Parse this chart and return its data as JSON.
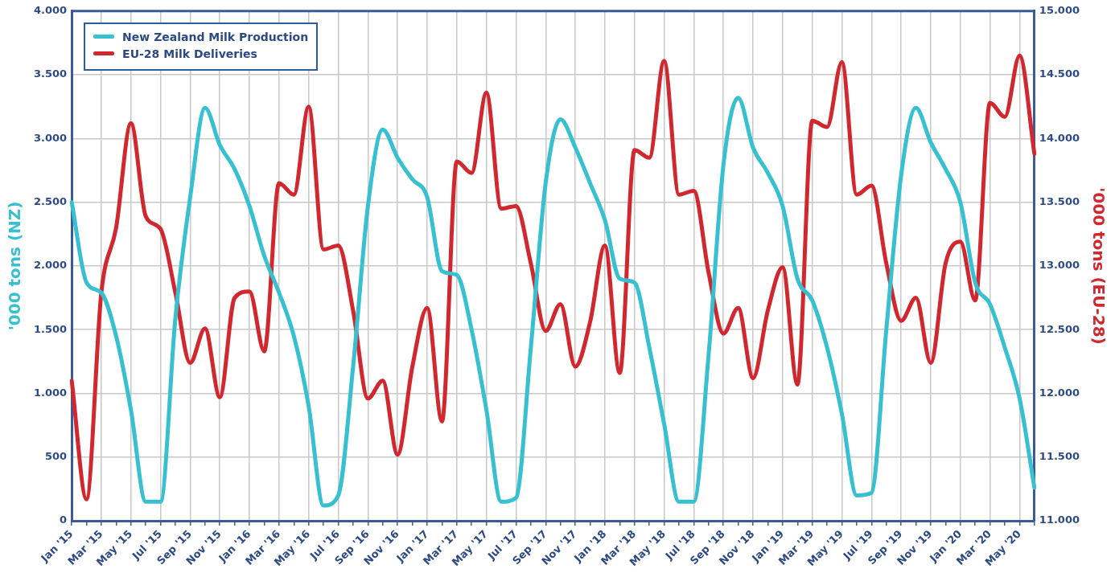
{
  "chart_data": {
    "type": "line",
    "categories": [
      "Jan '15",
      null,
      "Mar '15",
      null,
      "May '15",
      null,
      "Jul '15",
      null,
      "Sep '15",
      null,
      "Nov '15",
      null,
      "Jan '16",
      null,
      "Mar '16",
      null,
      "May '16",
      null,
      "Jul '16",
      null,
      "Sep '16",
      null,
      "Nov '16",
      null,
      "Jan '17",
      null,
      "Mar '17",
      null,
      "May '17",
      null,
      "Jul '17",
      null,
      "Sep '17",
      null,
      "Nov '17",
      null,
      "Jan '18",
      null,
      "Mar '18",
      null,
      "May '18",
      null,
      "Jul '18",
      null,
      "Sep '18",
      null,
      "Nov '18",
      null,
      "Jan '19",
      null,
      "Mar '19",
      null,
      "May '19",
      null,
      "Jul '19",
      null,
      "Sep '19",
      null,
      "Nov '19",
      null,
      "Jan '20",
      null,
      "Mar '20",
      null,
      "May '20",
      null
    ],
    "series": [
      {
        "name": "New Zealand Milk Production",
        "color": "#36c0d0",
        "values": [
          2500,
          1870,
          1790,
          1450,
          870,
          150,
          150,
          1590,
          2540,
          3240,
          2950,
          2760,
          2470,
          2080,
          1790,
          1450,
          900,
          120,
          200,
          1210,
          2470,
          3070,
          2850,
          2680,
          2540,
          1960,
          1930,
          1500,
          870,
          150,
          180,
          1360,
          2650,
          3150,
          2930,
          2650,
          2360,
          1900,
          1870,
          1360,
          760,
          150,
          150,
          1300,
          2790,
          3320,
          2930,
          2730,
          2470,
          1900,
          1730,
          1360,
          840,
          200,
          220,
          1500,
          2710,
          3240,
          2970,
          2760,
          2500,
          1870,
          1700,
          1360,
          960,
          260
        ]
      },
      {
        "name": "EU-28 Milk Deliveries",
        "color": "#d0282e",
        "axis": "y2",
        "values": [
          12100,
          11170,
          12790,
          13300,
          14120,
          13390,
          13290,
          12790,
          12240,
          12510,
          11970,
          12750,
          12800,
          12330,
          13650,
          13560,
          14250,
          13130,
          13160,
          12650,
          11960,
          12100,
          11520,
          12210,
          12670,
          11780,
          13820,
          13730,
          14360,
          13450,
          13470,
          13020,
          12490,
          12700,
          12210,
          12560,
          13160,
          12160,
          13910,
          13850,
          14610,
          13560,
          13590,
          12950,
          12470,
          12670,
          12120,
          12650,
          12990,
          12070,
          14140,
          14090,
          14600,
          13560,
          13630,
          13020,
          12570,
          12750,
          12240,
          13020,
          13190,
          12730,
          14280,
          14170,
          14650,
          13880
        ]
      }
    ],
    "ylabel": "'000 tons (NZ)",
    "y2label": "'000 tons (EU-28)",
    "ylim": [
      0,
      4000
    ],
    "yticks": [
      0,
      {
        "value": 500,
        "label": "500"
      },
      {
        "value": 1000,
        "label": "1.000"
      },
      {
        "value": 1500,
        "label": "1.500"
      },
      {
        "value": 2000,
        "label": "2.000"
      },
      {
        "value": 2500,
        "label": "2.500"
      },
      {
        "value": 3000,
        "label": "3.000"
      },
      {
        "value": 3500,
        "label": "3.500"
      },
      {
        "value": 4000,
        "label": "4.000"
      }
    ],
    "y2lim": [
      11000,
      15000
    ],
    "y2ticks": [
      {
        "value": 11000,
        "label": "11.000"
      },
      {
        "value": 11500,
        "label": "11.500"
      },
      {
        "value": 12000,
        "label": "12.000"
      },
      {
        "value": 12500,
        "label": "12.500"
      },
      {
        "value": 13000,
        "label": "13.000"
      },
      {
        "value": 13500,
        "label": "13.500"
      },
      {
        "value": 14000,
        "label": "14.000"
      },
      {
        "value": 14500,
        "label": "14.500"
      },
      {
        "value": 15000,
        "label": "15.000"
      }
    ],
    "grid": true,
    "legend": "top left",
    "marker": "none",
    "line_style": "solid"
  }
}
